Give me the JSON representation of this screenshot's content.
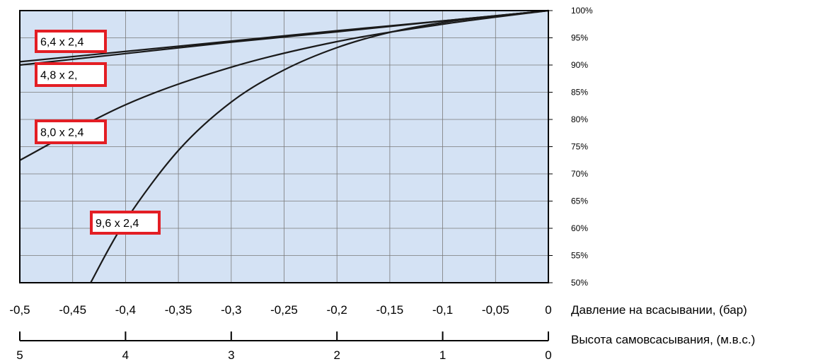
{
  "chart_data": {
    "type": "line",
    "xlabel": "Давление на всасывании, (бар)",
    "x_ticks": [
      "-0,5",
      "-0,45",
      "-0,4",
      "-0,35",
      "-0,3",
      "-0,25",
      "-0,2",
      "-0,15",
      "-0,1",
      "-0,05",
      "0"
    ],
    "xlim": [
      -0.5,
      0
    ],
    "secondary_axis": {
      "label": "Высота самовсасывания, (м.в.с.)",
      "ticks": [
        "5",
        "4",
        "3",
        "2",
        "1",
        "0"
      ],
      "range": [
        5,
        0
      ]
    },
    "y_ticks": [
      "100%",
      "95%",
      "90%",
      "85%",
      "80%",
      "75%",
      "70%",
      "65%",
      "60%",
      "55%",
      "50%"
    ],
    "ylim": [
      50,
      100
    ],
    "grid": true,
    "colors": {
      "plot_background": "#d4e2f4",
      "line": "#1a1a1a",
      "label_border": "#e31e24",
      "grid": "#7a7a7a"
    },
    "series": [
      {
        "name": "6,4 x 2,4",
        "x": [
          -0.5,
          -0.4,
          -0.3,
          -0.2,
          -0.1,
          0
        ],
        "y": [
          90.6,
          92.5,
          94.4,
          96.3,
          98.1,
          100
        ]
      },
      {
        "name": "4,8 x 2,",
        "x": [
          -0.5,
          -0.4,
          -0.3,
          -0.2,
          -0.1,
          0
        ],
        "y": [
          90.0,
          92.1,
          94.2,
          96.1,
          98.1,
          100
        ]
      },
      {
        "name": "8,0 x 2,4",
        "x": [
          -0.5,
          -0.4,
          -0.3,
          -0.2,
          -0.1,
          0
        ],
        "y": [
          72.5,
          82.7,
          89.6,
          94.3,
          97.5,
          100
        ]
      },
      {
        "name": "9,6 x 2,4",
        "x": [
          -0.433,
          -0.4,
          -0.35,
          -0.3,
          -0.25,
          -0.2,
          -0.15,
          -0.1,
          -0.05,
          0
        ],
        "y": [
          50,
          61.4,
          74.3,
          83.2,
          89.1,
          93.2,
          96.0,
          97.8,
          99.0,
          100
        ]
      }
    ]
  }
}
